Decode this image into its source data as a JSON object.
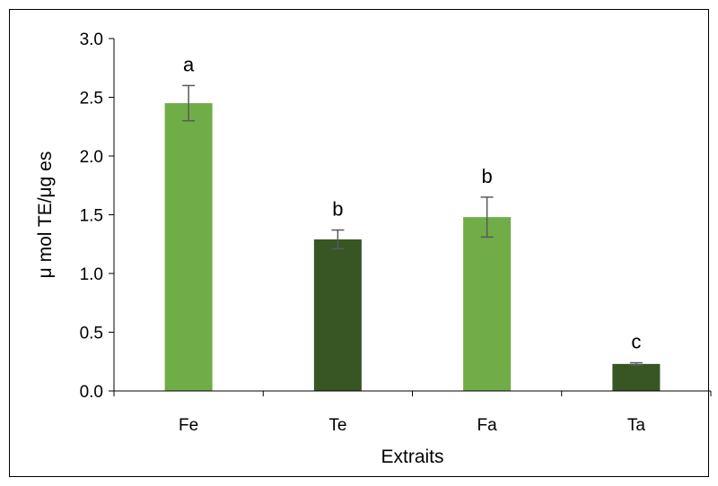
{
  "chart_data": {
    "type": "bar",
    "categories": [
      "Fe",
      "Te",
      "Fa",
      "Ta"
    ],
    "values": [
      2.45,
      1.29,
      1.48,
      0.23
    ],
    "error": [
      0.15,
      0.08,
      0.17,
      0.01
    ],
    "annotations": [
      "a",
      "b",
      "b",
      "c"
    ],
    "colors": [
      "#70AD47",
      "#375623",
      "#70AD47",
      "#375623"
    ],
    "error_bar_color": "#595959",
    "title": "",
    "xlabel": "Extraits",
    "ylabel": "μ mol TE/μg es",
    "ylim": [
      0,
      3.0
    ],
    "yticks": [
      "0.0",
      "0.5",
      "1.0",
      "1.5",
      "2.0",
      "2.5",
      "3.0"
    ],
    "grid": false,
    "legend": "none"
  }
}
